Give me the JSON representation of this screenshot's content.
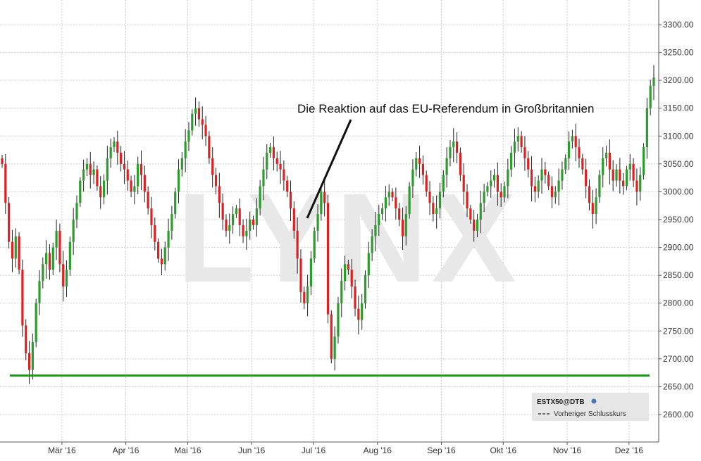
{
  "chart_data": {
    "type": "candlestick",
    "symbol": "ESTX50@DTB",
    "legend": {
      "title": "ESTX50@DTB",
      "items": [
        {
          "label": "Vorheriger Schlusskurs",
          "style": "dashed"
        }
      ],
      "placement": "bottom-right"
    },
    "watermark": "LYNX",
    "annotation": "Die Reaktion auf das EU-Referendum in Großbritannien",
    "ylim": [
      2550,
      3350
    ],
    "yticks": [
      2600,
      2650,
      2700,
      2750,
      2800,
      2850,
      2900,
      2950,
      3000,
      3050,
      3100,
      3150,
      3200,
      3250,
      3300
    ],
    "ytick_labels": [
      "2600.00",
      "2650.00",
      "2700.00",
      "2750.00",
      "2800.00",
      "2850.00",
      "2900.00",
      "2950.00",
      "3000.00",
      "3050.00",
      "3100.00",
      "3150.00",
      "3200.00",
      "3250.00",
      "3300.00"
    ],
    "xtick_labels": [
      "Mär '16",
      "Apr '16",
      "Mai '16",
      "Jun '16",
      "Jul '16",
      "Aug '16",
      "Sep '16",
      "Okt '16",
      "Nov '16",
      "Dez '16"
    ],
    "x_start": "2016-02-01",
    "x_end": "2016-12-13",
    "support_level": 2670,
    "grid": true,
    "colors": {
      "up": "#2a9d2a",
      "down": "#e02020",
      "support": "#1a9a1a",
      "wick": "#222222",
      "grid": "#cccccc"
    },
    "closes": [
      3050,
      2980,
      2910,
      2880,
      2920,
      2860,
      2760,
      2710,
      2680,
      2730,
      2800,
      2840,
      2870,
      2890,
      2860,
      2900,
      2930,
      2870,
      2830,
      2860,
      2910,
      2950,
      2980,
      3020,
      3040,
      3050,
      3030,
      3040,
      3010,
      2990,
      3020,
      3060,
      3080,
      3090,
      3070,
      3050,
      3040,
      3020,
      3000,
      3010,
      3050,
      3030,
      3000,
      2970,
      2940,
      2910,
      2880,
      2870,
      2900,
      2930,
      2960,
      3000,
      3040,
      3060,
      3090,
      3110,
      3140,
      3150,
      3130,
      3120,
      3100,
      3060,
      3030,
      3010,
      2980,
      2950,
      2930,
      2940,
      2960,
      2970,
      2940,
      2920,
      2930,
      2950,
      2940,
      2970,
      3010,
      3040,
      3070,
      3080,
      3060,
      3050,
      3040,
      3020,
      3000,
      2970,
      2930,
      2880,
      2820,
      2800,
      2830,
      2880,
      2930,
      2960,
      3000,
      2980,
      2780,
      2700,
      2740,
      2800,
      2840,
      2870,
      2860,
      2830,
      2790,
      2770,
      2800,
      2850,
      2890,
      2920,
      2940,
      2960,
      2970,
      2990,
      3000,
      2990,
      2970,
      2950,
      2920,
      2960,
      3010,
      3040,
      3060,
      3050,
      3030,
      3000,
      2980,
      2960,
      2970,
      3000,
      3030,
      3060,
      3080,
      3090,
      3070,
      3030,
      3000,
      2970,
      2950,
      2930,
      2950,
      2980,
      3000,
      3010,
      3020,
      3030,
      3000,
      2990,
      3010,
      3040,
      3070,
      3090,
      3100,
      3080,
      3060,
      3040,
      3010,
      3000,
      3020,
      3040,
      3030,
      3010,
      2990,
      3000,
      3020,
      3040,
      3060,
      3090,
      3100,
      3080,
      3060,
      3040,
      3010,
      2980,
      2960,
      2990,
      3030,
      3060,
      3070,
      3040,
      3020,
      3040,
      3020,
      3010,
      3040,
      3050,
      3020,
      3000,
      3030,
      3080,
      3150,
      3190,
      3205
    ]
  }
}
